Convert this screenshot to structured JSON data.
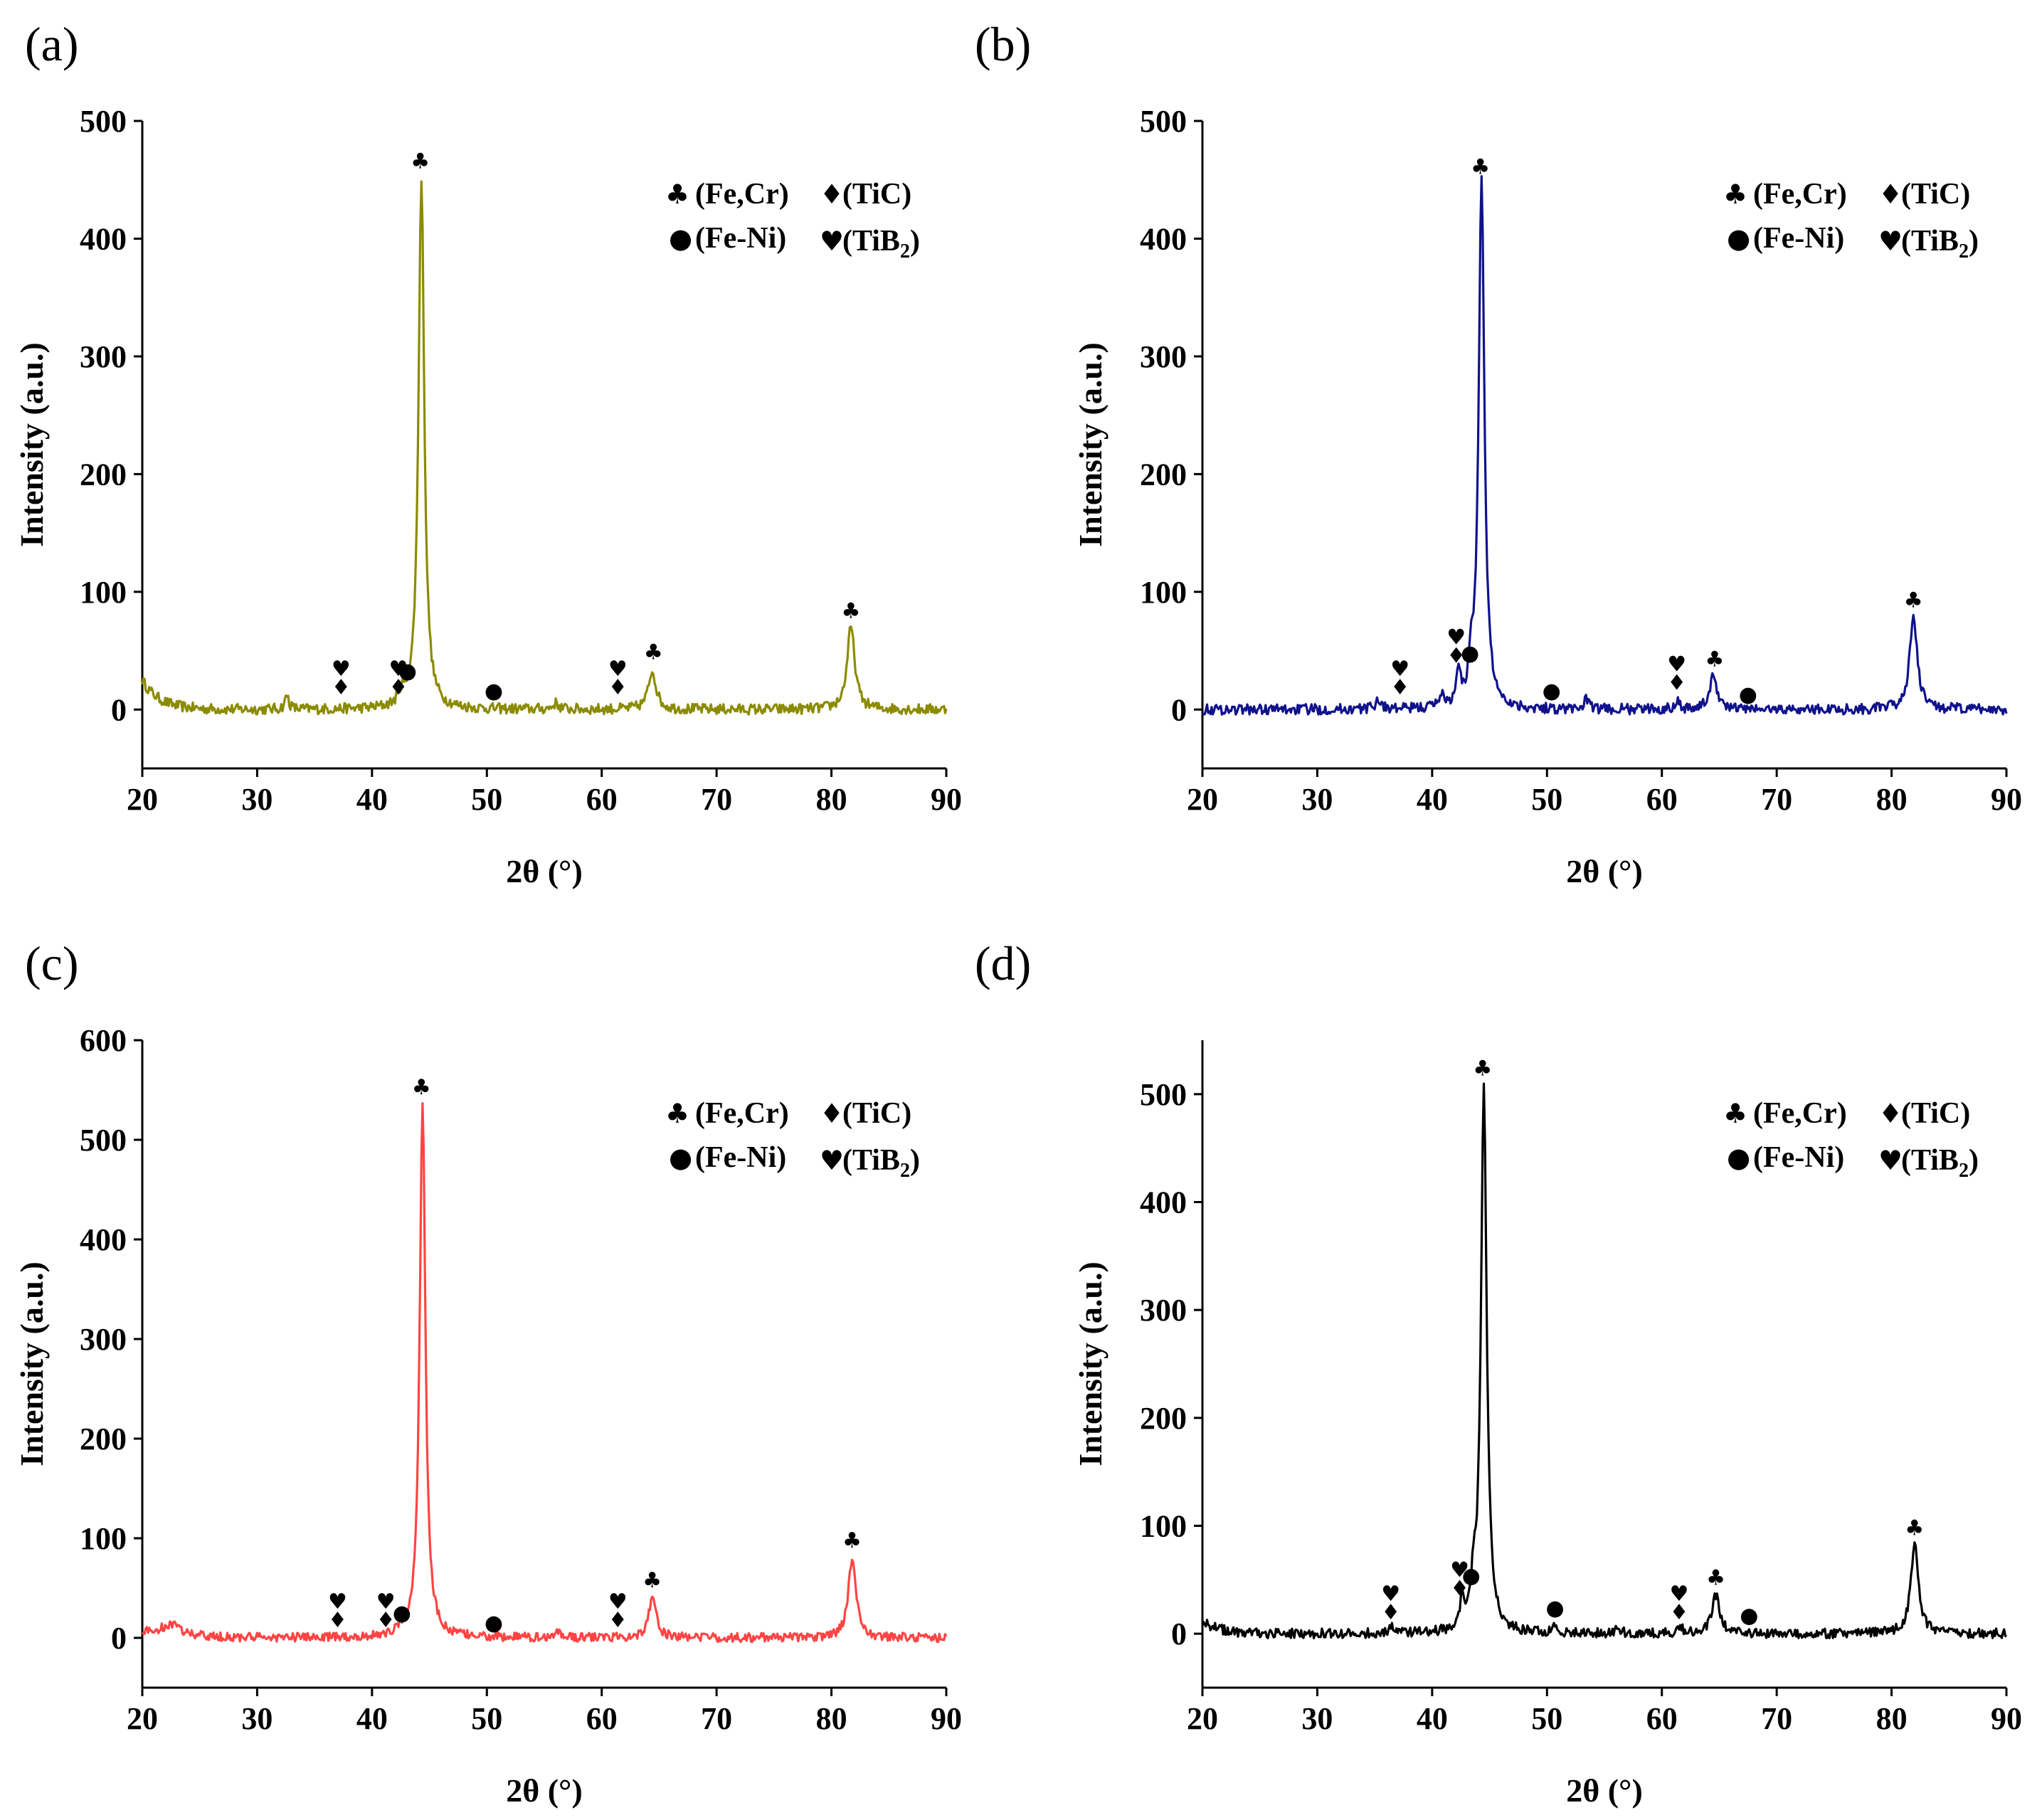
{
  "chart_data": [
    {
      "type": "line",
      "panel": "(a)",
      "color": "#8b8b00",
      "xlabel": "2θ (°)",
      "ylabel": "Intensity (a.u.)",
      "xlim": [
        20,
        90
      ],
      "ylim": [
        -50,
        500
      ],
      "xticks": [
        20,
        30,
        40,
        50,
        60,
        70,
        80,
        90
      ],
      "yticks": [
        0,
        100,
        200,
        300,
        400,
        500
      ],
      "legend": {
        "fecr": "(Fe,Cr)",
        "tic": "(TiC)",
        "feni": "(Fe-Ni)",
        "tib2": "(TiB",
        "tib2_sub": "2",
        "tib2_end": ")"
      },
      "start_level": 25,
      "peaks": [
        [
          32.6,
          12,
          0.2
        ],
        [
          42.6,
          10,
          0.25
        ],
        [
          44.3,
          452,
          0.3
        ],
        [
          56,
          5,
          0.3
        ],
        [
          64.4,
          33,
          0.4
        ],
        [
          81.7,
          70,
          0.4
        ]
      ],
      "markers": [
        {
          "x": 37.3,
          "y": 8,
          "syms": [
            "diamond",
            "heart"
          ]
        },
        {
          "x": 42.3,
          "y": 8,
          "syms": [
            "diamond",
            "heart"
          ]
        },
        {
          "x": 43.1,
          "y": 22,
          "syms": [
            "dot"
          ]
        },
        {
          "x": 44.2,
          "y": 455,
          "syms": [
            "club"
          ]
        },
        {
          "x": 50.6,
          "y": 5,
          "syms": [
            "dot"
          ]
        },
        {
          "x": 61.4,
          "y": 8,
          "syms": [
            "diamond",
            "heart"
          ]
        },
        {
          "x": 64.5,
          "y": 38,
          "syms": [
            "club"
          ]
        },
        {
          "x": 81.7,
          "y": 73,
          "syms": [
            "club"
          ]
        }
      ]
    },
    {
      "type": "line",
      "panel": "(b)",
      "color": "#10128c",
      "xlabel": "2θ (°)",
      "ylabel": "Intensity (a.u.)",
      "xlim": [
        20,
        90
      ],
      "ylim": [
        -50,
        500
      ],
      "xticks": [
        20,
        30,
        40,
        50,
        60,
        70,
        80,
        90
      ],
      "yticks": [
        0,
        100,
        200,
        300,
        400,
        500
      ],
      "legend": {
        "fecr": "(Fe,Cr)",
        "tic": "(TiC)",
        "feni": "(Fe-Ni)",
        "tib2": "(TiB",
        "tib2_sub": "2",
        "tib2_end": ")"
      },
      "start_level": 0,
      "peaks": [
        [
          35.3,
          8,
          0.3
        ],
        [
          40.8,
          10,
          0.3
        ],
        [
          42.3,
          28,
          0.2
        ],
        [
          43.4,
          30,
          0.2
        ],
        [
          44.3,
          448,
          0.3
        ],
        [
          53.4,
          10,
          0.2
        ],
        [
          61.3,
          8,
          0.25
        ],
        [
          64.5,
          28,
          0.4
        ],
        [
          81.9,
          78,
          0.4
        ]
      ],
      "markers": [
        {
          "x": 37.2,
          "y": 8,
          "syms": [
            "diamond",
            "heart"
          ]
        },
        {
          "x": 42.1,
          "y": 35,
          "syms": [
            "diamond",
            "heart"
          ]
        },
        {
          "x": 43.3,
          "y": 37,
          "syms": [
            "dot"
          ]
        },
        {
          "x": 44.2,
          "y": 450,
          "syms": [
            "club"
          ]
        },
        {
          "x": 50.4,
          "y": 5,
          "syms": [
            "dot"
          ]
        },
        {
          "x": 61.3,
          "y": 12,
          "syms": [
            "diamond",
            "heart"
          ]
        },
        {
          "x": 64.6,
          "y": 32,
          "syms": [
            "club"
          ]
        },
        {
          "x": 67.5,
          "y": 2,
          "syms": [
            "dot"
          ]
        },
        {
          "x": 81.9,
          "y": 82,
          "syms": [
            "club"
          ]
        }
      ]
    },
    {
      "type": "line",
      "panel": "(c)",
      "color": "#ff4444",
      "xlabel": "2θ (°)",
      "ylabel": "Intensity (a.u.)",
      "xlim": [
        20,
        90
      ],
      "ylim": [
        -50,
        600
      ],
      "xticks": [
        20,
        30,
        40,
        50,
        60,
        70,
        80,
        90
      ],
      "yticks": [
        0,
        100,
        200,
        300,
        400,
        500,
        600
      ],
      "legend": {
        "fecr": "(Fe,Cr)",
        "tic": "(TiC)",
        "feni": "(Fe-Ni)",
        "tib2": "(TiB",
        "tib2_sub": "2",
        "tib2_end": ")"
      },
      "start_level": 5,
      "peaks": [
        [
          22.5,
          12,
          1.2
        ],
        [
          42.5,
          5,
          0.3
        ],
        [
          44.4,
          538,
          0.3
        ],
        [
          56.2,
          6,
          0.3
        ],
        [
          64.4,
          40,
          0.4
        ],
        [
          81.8,
          80,
          0.4
        ]
      ],
      "markers": [
        {
          "x": 37.0,
          "y": 5,
          "syms": [
            "diamond",
            "heart"
          ]
        },
        {
          "x": 41.2,
          "y": 5,
          "syms": [
            "diamond",
            "heart"
          ]
        },
        {
          "x": 42.6,
          "y": 12,
          "syms": [
            "dot"
          ]
        },
        {
          "x": 44.3,
          "y": 540,
          "syms": [
            "club"
          ]
        },
        {
          "x": 50.6,
          "y": 2,
          "syms": [
            "dot"
          ]
        },
        {
          "x": 61.4,
          "y": 5,
          "syms": [
            "diamond",
            "heart"
          ]
        },
        {
          "x": 64.4,
          "y": 45,
          "syms": [
            "club"
          ]
        },
        {
          "x": 81.8,
          "y": 85,
          "syms": [
            "club"
          ]
        }
      ]
    },
    {
      "type": "line",
      "panel": "(d)",
      "color": "#000000",
      "xlabel": "2θ (°)",
      "ylabel": "Intensity (a.u.)",
      "xlim": [
        20,
        90
      ],
      "ylim": [
        -50,
        550
      ],
      "xticks": [
        20,
        30,
        40,
        50,
        60,
        70,
        80,
        90
      ],
      "yticks": [
        0,
        100,
        200,
        300,
        400,
        500
      ],
      "legend": {
        "fecr": "(Fe,Cr)",
        "tic": "(TiC)",
        "feni": "(Fe-Ni)",
        "tib2": "(TiB",
        "tib2_sub": "2",
        "tib2_end": ")"
      },
      "start_level": 12,
      "peaks": [
        [
          36.5,
          5,
          0.3
        ],
        [
          42.6,
          25,
          0.2
        ],
        [
          43.6,
          35,
          0.2
        ],
        [
          44.5,
          510,
          0.3
        ],
        [
          50.6,
          8,
          0.2
        ],
        [
          56.2,
          6,
          0.2
        ],
        [
          61.6,
          6,
          0.25
        ],
        [
          64.7,
          35,
          0.4
        ],
        [
          82.0,
          82,
          0.4
        ]
      ],
      "markers": [
        {
          "x": 36.4,
          "y": 8,
          "syms": [
            "diamond",
            "heart"
          ]
        },
        {
          "x": 42.4,
          "y": 30,
          "syms": [
            "diamond",
            "heart"
          ]
        },
        {
          "x": 43.4,
          "y": 42,
          "syms": [
            "dot"
          ]
        },
        {
          "x": 44.4,
          "y": 512,
          "syms": [
            "club"
          ]
        },
        {
          "x": 50.7,
          "y": 12,
          "syms": [
            "dot"
          ]
        },
        {
          "x": 61.5,
          "y": 8,
          "syms": [
            "diamond",
            "heart"
          ]
        },
        {
          "x": 64.7,
          "y": 40,
          "syms": [
            "club"
          ]
        },
        {
          "x": 67.6,
          "y": 5,
          "syms": [
            "dot"
          ]
        },
        {
          "x": 82.0,
          "y": 86,
          "syms": [
            "club"
          ]
        }
      ]
    }
  ]
}
